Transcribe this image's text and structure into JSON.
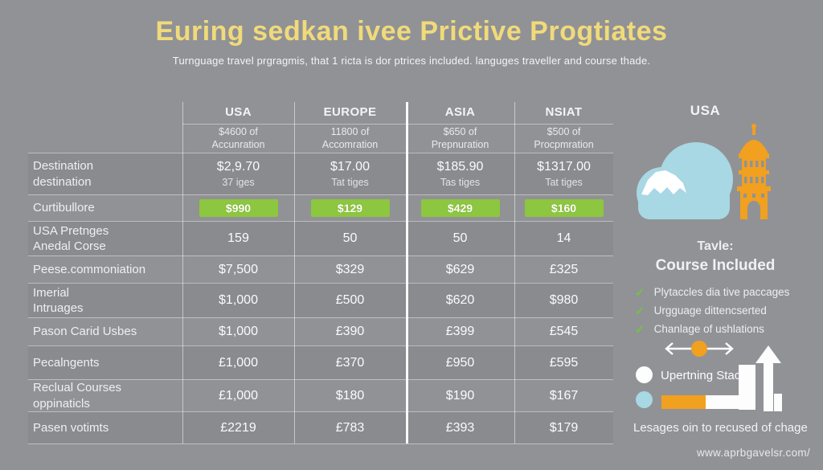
{
  "header": {
    "title": "Euring sedkan ivee Prictive Progtiates",
    "subtitle": "Turnguage travel prgragmis, that 1 ricta is dor ptrices included. languges traveller and course thade."
  },
  "table": {
    "columns": [
      {
        "name": "USA",
        "sub_lines": [
          "$4600 of",
          "Accunration"
        ]
      },
      {
        "name": "EUROPE",
        "sub_lines": [
          "11800 of",
          "Accomration"
        ]
      },
      {
        "name": "ASIA",
        "sub_lines": [
          "$650 of",
          "Prepnuration"
        ]
      },
      {
        "name": "NSIAT",
        "sub_lines": [
          "$500 of",
          "Procpmration"
        ]
      }
    ],
    "rows": [
      {
        "label_lines": [
          "Destination",
          "destination"
        ],
        "style": "text",
        "cells": [
          {
            "main": "$2,9.70",
            "sub": "37 iges"
          },
          {
            "main": "$17.00",
            "sub": "Tat tiges"
          },
          {
            "main": "$185.90",
            "sub": "Tas tiges"
          },
          {
            "main": "$1317.00",
            "sub": "Tat tiges"
          }
        ]
      },
      {
        "label_lines": [
          "Curtibullore"
        ],
        "style": "badge",
        "cells": [
          {
            "main": "$990"
          },
          {
            "main": "$129"
          },
          {
            "main": "$429"
          },
          {
            "main": "$160"
          }
        ]
      },
      {
        "label_lines": [
          "USA Pretnges",
          "Anedal Corse"
        ],
        "style": "text",
        "cells": [
          {
            "main": "159"
          },
          {
            "main": "50"
          },
          {
            "main": "50"
          },
          {
            "main": "14"
          }
        ]
      },
      {
        "label_lines": [
          "Peese.commoniation"
        ],
        "style": "text",
        "cells": [
          {
            "main": "$7,500"
          },
          {
            "main": "$329"
          },
          {
            "main": "$629"
          },
          {
            "main": "£325"
          }
        ]
      },
      {
        "label_lines": [
          "Imerial",
          "Intruages"
        ],
        "style": "text",
        "cells": [
          {
            "main": "$1,000"
          },
          {
            "main": "£500"
          },
          {
            "main": "$620"
          },
          {
            "main": "$980"
          }
        ]
      },
      {
        "label_lines": [
          "Pason Carid Usbes"
        ],
        "style": "text",
        "cells": [
          {
            "main": "$1,000"
          },
          {
            "main": "£390"
          },
          {
            "main": "£399"
          },
          {
            "main": "£545"
          }
        ]
      },
      {
        "label_lines": [
          "Pecalngents"
        ],
        "style": "text",
        "cells": [
          {
            "main": "£1,000"
          },
          {
            "main": "£370"
          },
          {
            "main": "£950"
          },
          {
            "main": "£595"
          }
        ]
      },
      {
        "label_lines": [
          "Reclual Courses",
          "oppinaticls"
        ],
        "style": "text",
        "cells": [
          {
            "main": "£1,000"
          },
          {
            "main": "$180"
          },
          {
            "main": "$190"
          },
          {
            "main": "$167"
          }
        ]
      },
      {
        "label_lines": [
          "Pasen votimts"
        ],
        "style": "text",
        "cells": [
          {
            "main": "£2219"
          },
          {
            "main": "£783"
          },
          {
            "main": "£393"
          },
          {
            "main": "$179"
          }
        ]
      }
    ]
  },
  "side": {
    "country": "USA",
    "panel_title_line1": "Tavle:",
    "panel_title_line2": "Course Included",
    "checklist": [
      "Plytaccles dia tive paccages",
      "Urgguage dittencserted",
      "Chanlage of ushlations"
    ],
    "legend1": "Upertning Stacch",
    "caption": "Lesages oin to recused of chage",
    "website": "www.aprbgavelsr.com/"
  },
  "colors": {
    "background_gray": "#919296",
    "accent_yellow": "#f0da7a",
    "badge_green": "#8dc63f",
    "check_green": "#76c043",
    "orange": "#f2a01f",
    "light_blue": "#a7d8e4",
    "text_white": "#fbfbfc"
  },
  "chart_data": {
    "type": "table",
    "title": "Euring sedkan ivee Prictive Progtiates",
    "subtitle": "Turnguage travel prgragmis, that 1 ricta is dor ptrices included. languges traveller and course thade.",
    "columns": [
      "",
      "USA",
      "EUROPE",
      "ASIA",
      "NSIAT"
    ],
    "column_subheaders": [
      "",
      "$4600 of Accunration",
      "11800 of Accomration",
      "$650 of Prepnuration",
      "$500 of Procpmration"
    ],
    "rows": [
      [
        "Destination destination",
        "$2,9.70 (37 iges)",
        "$17.00 (Tat tiges)",
        "$185.90 (Tas tiges)",
        "$1317.00 (Tat tiges)"
      ],
      [
        "Curtibullore",
        "$990",
        "$129",
        "$429",
        "$160"
      ],
      [
        "USA Pretnges Anedal Corse",
        "159",
        "50",
        "50",
        "14"
      ],
      [
        "Peese.commoniation",
        "$7,500",
        "$329",
        "$629",
        "£325"
      ],
      [
        "Imerial Intruages",
        "$1,000",
        "£500",
        "$620",
        "$980"
      ],
      [
        "Pason Carid Usbes",
        "$1,000",
        "£390",
        "£399",
        "£545"
      ],
      [
        "Pecalngents",
        "£1,000",
        "£370",
        "£950",
        "£595"
      ],
      [
        "Reclual Courses oppinaticls",
        "£1,000",
        "$180",
        "$190",
        "$167"
      ],
      [
        "Pasen votimts",
        "£2219",
        "£783",
        "£393",
        "$179"
      ]
    ],
    "legend_entries": [
      "Upertning Stacch"
    ],
    "layout": "pricing comparison table left, USA illustration and course-included legend right"
  }
}
